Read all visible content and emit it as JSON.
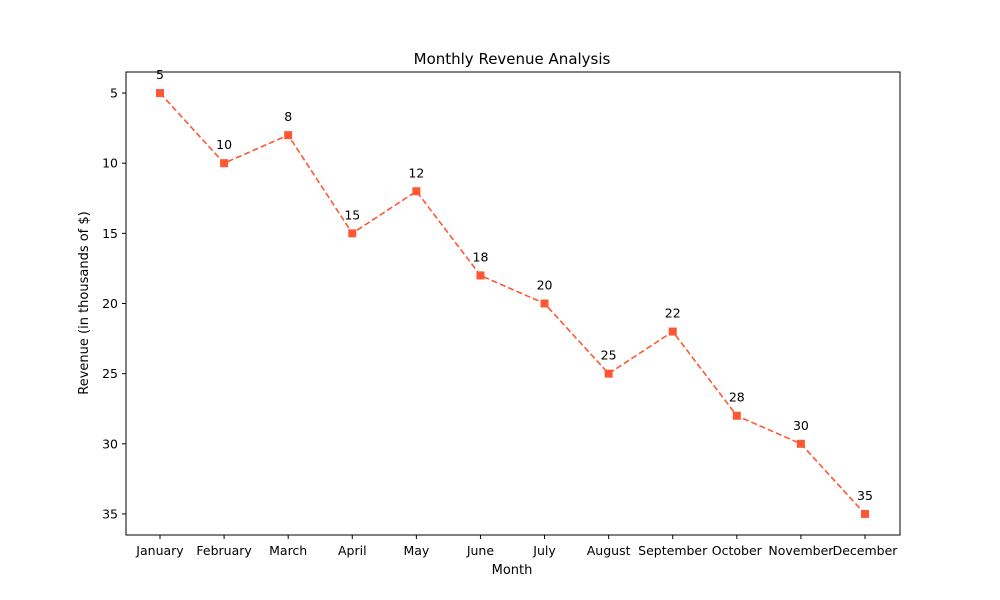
{
  "chart_data": {
    "type": "line",
    "title": "Monthly Revenue Analysis",
    "xlabel": "Month",
    "ylabel": "Revenue (in thousands of $)",
    "categories": [
      "January",
      "February",
      "March",
      "April",
      "May",
      "June",
      "July",
      "August",
      "September",
      "October",
      "November",
      "December"
    ],
    "values": [
      5,
      10,
      8,
      15,
      12,
      18,
      20,
      25,
      22,
      28,
      30,
      35
    ],
    "ylim": [
      3.5,
      36.5
    ],
    "y_inverted": true,
    "yticks": [
      5,
      10,
      15,
      20,
      25,
      30,
      35
    ],
    "grid": false,
    "line_style": "dashed",
    "marker": "square",
    "colors": {
      "series": "#ff5733",
      "axis": "#000000"
    }
  }
}
